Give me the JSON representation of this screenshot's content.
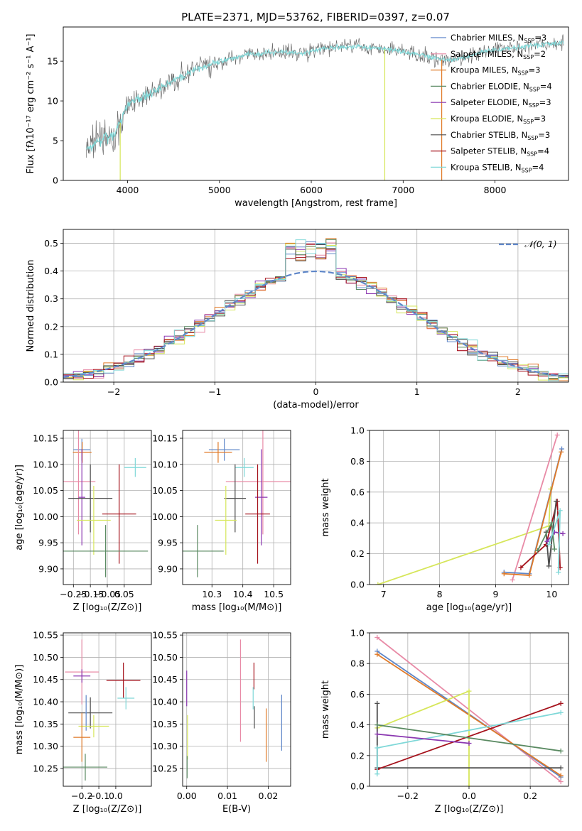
{
  "figure_title": "PLATE=2371, MJD=53762, FIBERID=0397, z=0.07",
  "colors": {
    "Chabrier MILES": "#5f87c9",
    "Salpeter MILES": "#e88aa6",
    "Kroupa MILES": "#e07a28",
    "Chabrier ELODIE": "#5a8a62",
    "Salpeter ELODIE": "#8a36b0",
    "Kroupa ELODIE": "#d6e65a",
    "Chabrier STELIB": "#4d4d4d",
    "Salpeter STELIB": "#a5121c",
    "Kroupa STELIB": "#7fd8d8"
  },
  "chart_data": [
    {
      "id": "spectrum",
      "type": "line",
      "xlabel": "wavelength [Angstrom, rest frame]",
      "ylabel": "Flux [fλ10⁻¹⁷ erg cm⁻² s⁻¹ A⁻¹]",
      "xlim": [
        3300,
        8800
      ],
      "ylim": [
        0,
        19.3
      ],
      "xticks": [
        4000,
        5000,
        6000,
        7000,
        8000
      ],
      "yticks": [
        0,
        5,
        10,
        15
      ],
      "grid": false,
      "legend_position": "right",
      "legend": [
        {
          "model": "Chabrier MILES",
          "label": "Chabrier MILES, N",
          "sub": "SSP",
          "n": "=3"
        },
        {
          "model": "Salpeter MILES",
          "label": "Salpeter MILES, N",
          "sub": "SSP",
          "n": "=2"
        },
        {
          "model": "Kroupa MILES",
          "label": "Kroupa MILES, N",
          "sub": "SSP",
          "n": "=3"
        },
        {
          "model": "Chabrier ELODIE",
          "label": "Chabrier ELODIE, N",
          "sub": "SSP",
          "n": "=4"
        },
        {
          "model": "Salpeter ELODIE",
          "label": "Salpeter ELODIE, N",
          "sub": "SSP",
          "n": "=3"
        },
        {
          "model": "Kroupa ELODIE",
          "label": "Kroupa ELODIE, N",
          "sub": "SSP",
          "n": "=3"
        },
        {
          "model": "Chabrier STELIB",
          "label": "Chabrier STELIB, N",
          "sub": "SSP",
          "n": "=3"
        },
        {
          "model": "Salpeter STELIB",
          "label": "Salpeter STELIB, N",
          "sub": "SSP",
          "n": "=4"
        },
        {
          "model": "Kroupa STELIB",
          "label": "Kroupa STELIB, N",
          "sub": "SSP",
          "n": "=4"
        }
      ],
      "continuum": [
        [
          3550,
          3.8
        ],
        [
          3700,
          5.2
        ],
        [
          3850,
          5.5
        ],
        [
          3950,
          8.0
        ],
        [
          4000,
          9.5
        ],
        [
          4100,
          10.2
        ],
        [
          4300,
          11.2
        ],
        [
          4500,
          12.5
        ],
        [
          4700,
          13.8
        ],
        [
          4900,
          14.5
        ],
        [
          5100,
          15.3
        ],
        [
          5300,
          15.8
        ],
        [
          5500,
          16.0
        ],
        [
          5700,
          16.2
        ],
        [
          5900,
          16.0
        ],
        [
          6100,
          16.5
        ],
        [
          6300,
          16.8
        ],
        [
          6500,
          16.9
        ],
        [
          6700,
          16.6
        ],
        [
          6900,
          16.4
        ],
        [
          7100,
          16.0
        ],
        [
          7300,
          15.5
        ],
        [
          7500,
          15.0
        ],
        [
          7700,
          15.6
        ],
        [
          7900,
          16.3
        ],
        [
          8100,
          16.6
        ],
        [
          8300,
          16.8
        ],
        [
          8550,
          17.2
        ],
        [
          8750,
          17.3
        ]
      ],
      "vertical_features": [
        {
          "x": 3920,
          "color": "Kroupa ELODIE"
        },
        {
          "x": 6800,
          "color": "Kroupa ELODIE"
        },
        {
          "x": 7420,
          "color": "Kroupa MILES"
        }
      ]
    },
    {
      "id": "residual-histogram",
      "type": "histogram",
      "xlabel": "(data-model)/error",
      "ylabel": "Normed distribution",
      "xlim": [
        -2.5,
        2.5
      ],
      "ylim": [
        0,
        0.55
      ],
      "xticks": [
        -2,
        -1,
        0,
        1,
        2
      ],
      "yticks": [
        0.0,
        0.1,
        0.2,
        0.3,
        0.4,
        0.5
      ],
      "grid": true,
      "bin_width": 0.1,
      "reference_curve": {
        "label": "𝒩(0, 1)",
        "color": "#5f87c9",
        "style": "dashed"
      },
      "legend_position": "top-right"
    },
    {
      "id": "age-vs-Z",
      "type": "errorbar",
      "xlabel": "Z [log₁₀(Z/Z⊙)]",
      "ylabel": "age  [log₁₀(age/yr)]",
      "xlim": [
        -0.31,
        0.21
      ],
      "ylim": [
        9.87,
        10.165
      ],
      "xticks": [
        -0.25,
        -0.15,
        -0.05,
        0.05
      ],
      "xticklabels": [
        "−0.25",
        "−0.15",
        "−0.05",
        "0.05"
      ],
      "yticks": [
        9.9,
        9.95,
        10.0,
        10.05,
        10.1,
        10.15
      ],
      "grid": true,
      "points": [
        {
          "model": "Chabrier MILES",
          "x": -0.2,
          "xerr": 0.05,
          "y": 10.128,
          "yerr": 0.021
        },
        {
          "model": "Kroupa MILES",
          "x": -0.198,
          "xerr": 0.055,
          "y": 10.123,
          "yerr": 0.02
        },
        {
          "model": "Salpeter MILES",
          "x": -0.22,
          "xerr": 0.1,
          "y": 10.067,
          "yerr": 0.101
        },
        {
          "model": "Kroupa STELIB",
          "x": 0.115,
          "xerr": 0.065,
          "y": 10.094,
          "yerr": 0.018
        },
        {
          "model": "Salpeter ELODIE",
          "x": -0.2,
          "xerr": 0.02,
          "y": 10.037,
          "yerr": 0.092
        },
        {
          "model": "Chabrier STELIB",
          "x": -0.15,
          "xerr": 0.13,
          "y": 10.035,
          "yerr": 0.065
        },
        {
          "model": "Salpeter STELIB",
          "x": 0.02,
          "xerr": 0.1,
          "y": 10.005,
          "yerr": 0.095
        },
        {
          "model": "Kroupa ELODIE",
          "x": -0.13,
          "xerr": 0.1,
          "y": 9.993,
          "yerr": 0.066
        },
        {
          "model": "Chabrier ELODIE",
          "x": -0.06,
          "xerr": 0.25,
          "y": 9.934,
          "yerr": 0.05
        }
      ]
    },
    {
      "id": "age-vs-mass",
      "type": "errorbar",
      "xlabel": "mass [log₁₀(M/M⊙)]",
      "ylabel": "",
      "xlim": [
        10.205,
        10.555
      ],
      "ylim": [
        9.87,
        10.165
      ],
      "xticks": [
        10.3,
        10.4,
        10.5
      ],
      "yticks": [
        9.9,
        9.95,
        10.0,
        10.05,
        10.1,
        10.15
      ],
      "grid": true,
      "points": [
        {
          "model": "Chabrier MILES",
          "x": 10.34,
          "xerr": 0.05,
          "y": 10.128,
          "yerr": 0.021
        },
        {
          "model": "Kroupa MILES",
          "x": 10.32,
          "xerr": 0.045,
          "y": 10.123,
          "yerr": 0.02
        },
        {
          "model": "Kroupa STELIB",
          "x": 10.405,
          "xerr": 0.03,
          "y": 10.094,
          "yerr": 0.018
        },
        {
          "model": "Salpeter MILES",
          "x": 10.465,
          "xerr": 0.12,
          "y": 10.067,
          "yerr": 0.101
        },
        {
          "model": "Salpeter ELODIE",
          "x": 10.46,
          "xerr": 0.02,
          "y": 10.037,
          "yerr": 0.092
        },
        {
          "model": "Chabrier STELIB",
          "x": 10.375,
          "xerr": 0.035,
          "y": 10.035,
          "yerr": 0.065
        },
        {
          "model": "Salpeter STELIB",
          "x": 10.448,
          "xerr": 0.04,
          "y": 10.005,
          "yerr": 0.095
        },
        {
          "model": "Kroupa ELODIE",
          "x": 10.345,
          "xerr": 0.035,
          "y": 9.993,
          "yerr": 0.066
        },
        {
          "model": "Chabrier ELODIE",
          "x": 10.253,
          "xerr": 0.085,
          "y": 9.934,
          "yerr": 0.05
        }
      ]
    },
    {
      "id": "massweight-vs-age",
      "type": "line",
      "xlabel": "age  [log₁₀(age/yr)]",
      "ylabel": "mass weight",
      "xlim": [
        6.75,
        10.3
      ],
      "ylim": [
        0,
        1.0
      ],
      "xticks": [
        7,
        8,
        9,
        10
      ],
      "yticks": [
        0.0,
        0.2,
        0.4,
        0.6,
        0.8,
        1.0
      ],
      "grid": true,
      "series": [
        {
          "model": "Kroupa ELODIE",
          "points": [
            [
              6.9,
              0.0
            ],
            [
              9.95,
              0.38
            ],
            [
              9.98,
              0.62
            ]
          ]
        },
        {
          "model": "Salpeter MILES",
          "points": [
            [
              9.3,
              0.03
            ],
            [
              10.1,
              0.97
            ]
          ]
        },
        {
          "model": "Chabrier MILES",
          "points": [
            [
              9.15,
              0.08
            ],
            [
              9.6,
              0.07
            ],
            [
              10.18,
              0.88
            ]
          ]
        },
        {
          "model": "Kroupa MILES",
          "points": [
            [
              9.15,
              0.07
            ],
            [
              9.6,
              0.06
            ],
            [
              10.17,
              0.86
            ]
          ]
        },
        {
          "model": "Salpeter STELIB",
          "points": [
            [
              9.45,
              0.11
            ],
            [
              9.9,
              0.26
            ],
            [
              10.1,
              0.54
            ],
            [
              10.15,
              0.11
            ]
          ]
        },
        {
          "model": "Chabrier STELIB",
          "points": [
            [
              9.9,
              0.34
            ],
            [
              9.95,
              0.12
            ],
            [
              10.08,
              0.54
            ]
          ]
        },
        {
          "model": "Salpeter ELODIE",
          "points": [
            [
              9.92,
              0.28
            ],
            [
              10.05,
              0.34
            ],
            [
              10.2,
              0.33
            ]
          ]
        },
        {
          "model": "Chabrier ELODIE",
          "points": [
            [
              9.75,
              0.22
            ],
            [
              10.0,
              0.4
            ],
            [
              10.05,
              0.23
            ]
          ]
        },
        {
          "model": "Kroupa STELIB",
          "points": [
            [
              9.95,
              0.26
            ],
            [
              10.15,
              0.48
            ],
            [
              10.12,
              0.08
            ]
          ]
        }
      ]
    },
    {
      "id": "mass-vs-Z",
      "type": "errorbar",
      "xlabel": "Z [log₁₀(Z/Z⊙)]",
      "ylabel": "mass [log₁₀(M/M⊙)]",
      "xlim": [
        -0.31,
        0.21
      ],
      "ylim": [
        10.21,
        10.555
      ],
      "xticks": [
        -0.2,
        -0.1,
        0.0
      ],
      "xticklabels": [
        "−0.2",
        "−0.1",
        "0.0"
      ],
      "yticks": [
        10.25,
        10.3,
        10.35,
        10.4,
        10.45,
        10.5,
        10.55
      ],
      "grid": true,
      "points": [
        {
          "model": "Salpeter MILES",
          "x": -0.2,
          "xerr": 0.1,
          "y": 10.467,
          "yerr": 0.073
        },
        {
          "model": "Salpeter ELODIE",
          "x": -0.2,
          "xerr": 0.05,
          "y": 10.458,
          "yerr": 0.015
        },
        {
          "model": "Salpeter STELIB",
          "x": 0.045,
          "xerr": 0.1,
          "y": 10.448,
          "yerr": 0.04
        },
        {
          "model": "Kroupa STELIB",
          "x": 0.06,
          "xerr": 0.05,
          "y": 10.408,
          "yerr": 0.025
        },
        {
          "model": "Chabrier STELIB",
          "x": -0.15,
          "xerr": 0.13,
          "y": 10.375,
          "yerr": 0.035
        },
        {
          "model": "Chabrier MILES",
          "x": -0.175,
          "xerr": 0.005,
          "y": 10.375,
          "yerr": 0.04
        },
        {
          "model": "Kroupa ELODIE",
          "x": -0.13,
          "xerr": 0.09,
          "y": 10.345,
          "yerr": 0.025
        },
        {
          "model": "Kroupa MILES",
          "x": -0.2,
          "xerr": 0.05,
          "y": 10.32,
          "yerr": 0.055
        },
        {
          "model": "Chabrier ELODIE",
          "x": -0.18,
          "xerr": 0.13,
          "y": 10.253,
          "yerr": 0.03
        }
      ]
    },
    {
      "id": "mass-vs-EBV",
      "type": "errorbar",
      "xlabel": "E(B-V)",
      "ylabel": "",
      "xlim": [
        -0.001,
        0.0255
      ],
      "ylim": [
        10.21,
        10.555
      ],
      "xticks": [
        0.0,
        0.01,
        0.02
      ],
      "xticklabels": [
        "0.00",
        "0.01",
        "0.02"
      ],
      "yticks": [
        10.25,
        10.3,
        10.35,
        10.4,
        10.45,
        10.5,
        10.55
      ],
      "grid": true,
      "points": [
        {
          "model": "Salpeter ELODIE",
          "x": 0.0,
          "xerr": 0,
          "y": 10.43,
          "yerr": 0.04
        },
        {
          "model": "Kroupa ELODIE",
          "x": 0.0002,
          "xerr": 0,
          "y": 10.32,
          "yerr": 0.05
        },
        {
          "model": "Chabrier ELODIE",
          "x": 0.0001,
          "xerr": 0,
          "y": 10.253,
          "yerr": 0.025
        },
        {
          "model": "Salpeter MILES",
          "x": 0.0132,
          "xerr": 0,
          "y": 10.425,
          "yerr": 0.115
        },
        {
          "model": "Salpeter STELIB",
          "x": 0.0165,
          "xerr": 0,
          "y": 10.458,
          "yerr": 0.03
        },
        {
          "model": "Kroupa STELIB",
          "x": 0.0163,
          "xerr": 0,
          "y": 10.408,
          "yerr": 0.025
        },
        {
          "model": "Chabrier STELIB",
          "x": 0.0166,
          "xerr": 0,
          "y": 10.365,
          "yerr": 0.025
        },
        {
          "model": "Kroupa MILES",
          "x": 0.0195,
          "xerr": 0,
          "y": 10.325,
          "yerr": 0.06
        },
        {
          "model": "Chabrier MILES",
          "x": 0.0233,
          "xerr": 0,
          "y": 10.353,
          "yerr": 0.063
        }
      ]
    },
    {
      "id": "massweight-vs-Z",
      "type": "line",
      "xlabel": "Z [log₁₀(Z/Z⊙)]",
      "ylabel": "mass weight",
      "xlim": [
        -0.325,
        0.325
      ],
      "ylim": [
        0,
        1.0
      ],
      "xticks": [
        -0.2,
        0.0,
        0.2
      ],
      "xticklabels": [
        "−0.2",
        "0.0",
        "0.2"
      ],
      "yticks": [
        0.0,
        0.2,
        0.4,
        0.6,
        0.8,
        1.0
      ],
      "grid": true,
      "series": [
        {
          "model": "Salpeter MILES",
          "points": [
            [
              -0.3,
              0.97
            ],
            [
              0.3,
              0.03
            ]
          ]
        },
        {
          "model": "Chabrier MILES",
          "points": [
            [
              -0.3,
              0.88
            ],
            [
              0.3,
              0.06
            ]
          ]
        },
        {
          "model": "Kroupa MILES",
          "points": [
            [
              -0.3,
              0.86
            ],
            [
              0.3,
              0.07
            ]
          ]
        },
        {
          "model": "Kroupa ELODIE",
          "points": [
            [
              -0.3,
              0.38
            ],
            [
              0.0,
              0.62
            ],
            [
              0.0,
              0.0
            ]
          ]
        },
        {
          "model": "Chabrier STELIB",
          "points": [
            [
              -0.3,
              0.54
            ],
            [
              -0.3,
              0.12
            ],
            [
              0.3,
              0.12
            ]
          ]
        },
        {
          "model": "Salpeter STELIB",
          "points": [
            [
              -0.3,
              0.11
            ],
            [
              0.3,
              0.54
            ]
          ]
        },
        {
          "model": "Kroupa STELIB",
          "points": [
            [
              -0.3,
              0.08
            ],
            [
              -0.3,
              0.25
            ],
            [
              0.3,
              0.48
            ]
          ]
        },
        {
          "model": "Chabrier ELODIE",
          "points": [
            [
              -0.3,
              0.4
            ],
            [
              0.3,
              0.23
            ]
          ]
        },
        {
          "model": "Salpeter ELODIE",
          "points": [
            [
              -0.3,
              0.34
            ],
            [
              0.0,
              0.28
            ]
          ]
        }
      ]
    }
  ]
}
